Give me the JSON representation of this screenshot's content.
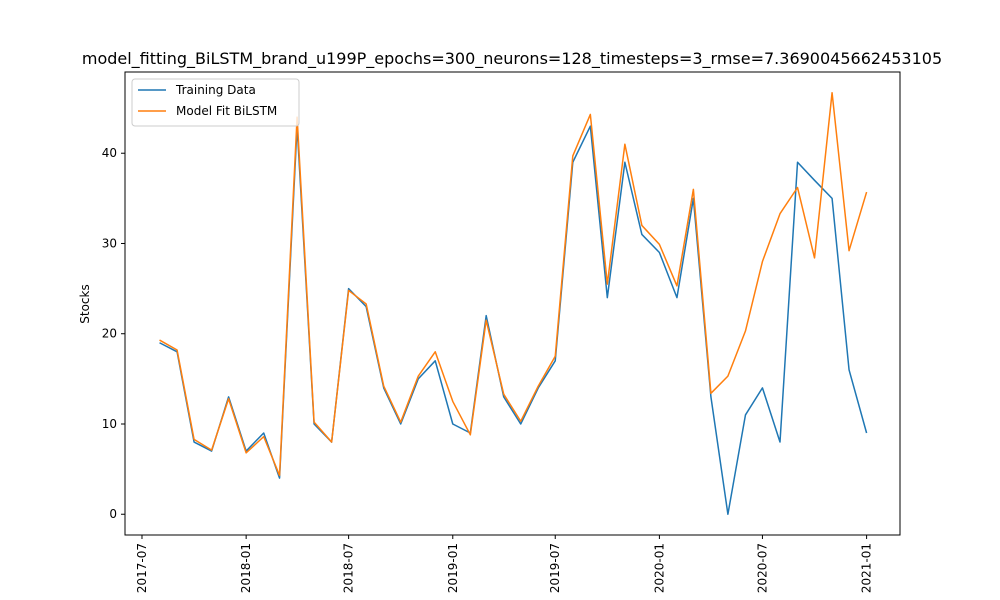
{
  "chart_data": {
    "type": "line",
    "title": "model_fitting_BiLSTM_brand_u199P_epochs=300_neurons=128_timesteps=3_rmse=7.3690045662453105",
    "xlabel": "",
    "ylabel": "Stocks",
    "xlim": [
      "2017-06-01",
      "2021-03-01"
    ],
    "ylim": [
      -2.3,
      49
    ],
    "x_ticks": [
      "2017-07",
      "2018-01",
      "2018-07",
      "2019-01",
      "2019-07",
      "2020-01",
      "2020-07",
      "2021-01"
    ],
    "y_ticks": [
      0,
      10,
      20,
      30,
      40
    ],
    "grid": false,
    "legend_position": "top-left",
    "x": [
      "2017-08-01",
      "2017-09-01",
      "2017-10-01",
      "2017-11-01",
      "2017-12-01",
      "2018-01-01",
      "2018-02-01",
      "2018-03-01",
      "2018-04-01",
      "2018-05-01",
      "2018-06-01",
      "2018-07-01",
      "2018-08-01",
      "2018-09-01",
      "2018-10-01",
      "2018-11-01",
      "2018-12-01",
      "2019-01-01",
      "2019-02-01",
      "2019-03-01",
      "2019-04-01",
      "2019-05-01",
      "2019-06-01",
      "2019-07-01",
      "2019-08-01",
      "2019-09-01",
      "2019-10-01",
      "2019-11-01",
      "2019-12-01",
      "2020-01-01",
      "2020-02-01",
      "2020-03-01",
      "2020-04-01",
      "2020-05-01",
      "2020-06-01",
      "2020-07-01",
      "2020-08-01",
      "2020-09-01",
      "2020-10-01",
      "2020-11-01",
      "2020-12-01",
      "2021-01-01"
    ],
    "series": [
      {
        "name": "Training Data",
        "color": "#1f77b4",
        "values": [
          19,
          18,
          8,
          7,
          13,
          7,
          9,
          4,
          43,
          10,
          8,
          25,
          23,
          14,
          10,
          15,
          17,
          10,
          9,
          22,
          13,
          10,
          14,
          17,
          39,
          43,
          24,
          39,
          31,
          29,
          24,
          35,
          13,
          0,
          11,
          14,
          8,
          39,
          37,
          35,
          16,
          9
        ]
      },
      {
        "name": "Model Fit BiLSTM",
        "color": "#ff7f0e",
        "values": [
          19.3,
          18.2,
          8.3,
          7.1,
          12.8,
          6.8,
          8.6,
          4.3,
          44.0,
          10.2,
          8.0,
          24.8,
          23.3,
          14.2,
          10.2,
          15.3,
          18.0,
          12.5,
          8.8,
          21.5,
          13.3,
          10.3,
          14.2,
          17.5,
          39.7,
          44.3,
          25.5,
          41.0,
          32.0,
          29.9,
          25.3,
          36.0,
          13.4,
          15.3,
          20.3,
          28.0,
          33.3,
          36.2,
          28.4,
          46.7,
          29.2,
          35.7
        ]
      }
    ]
  }
}
